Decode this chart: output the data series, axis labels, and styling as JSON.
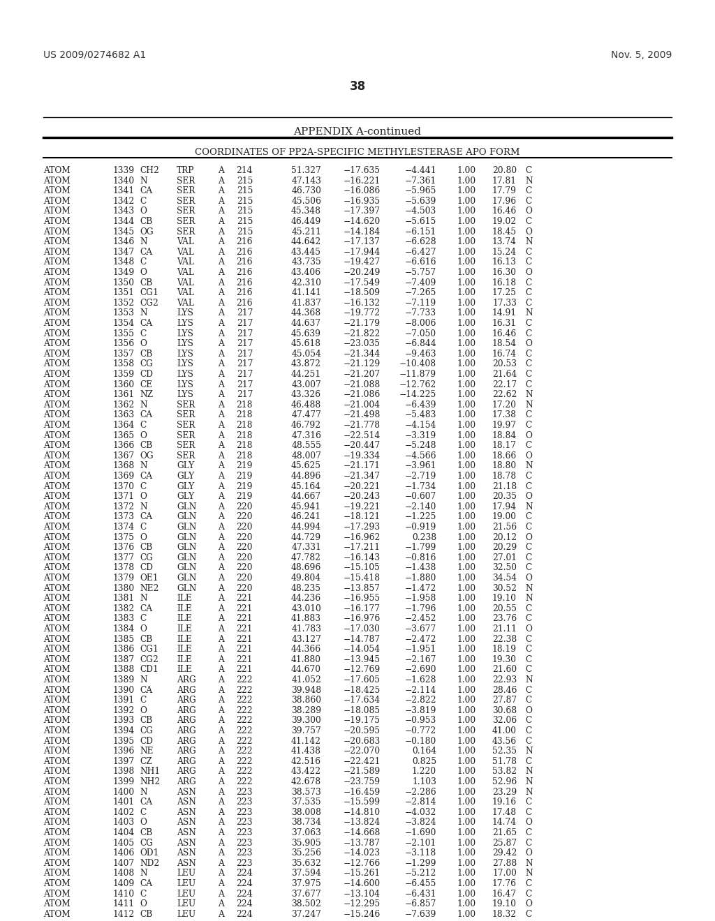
{
  "header_left": "US 2009/0274682 A1",
  "header_right": "Nov. 5, 2009",
  "page_number": "38",
  "appendix_title": "APPENDIX A-continued",
  "table_title": "COORDINATES OF PP2A-SPECIFIC METHYLESTERASE APO FORM",
  "rows": [
    [
      "ATOM",
      "1339",
      "CH2",
      "TRP",
      "A",
      "214",
      "51.327",
      "−17.635",
      "−4.441",
      "1.00",
      "20.80",
      "C"
    ],
    [
      "ATOM",
      "1340",
      "N",
      "SER",
      "A",
      "215",
      "47.143",
      "−16.221",
      "−7.361",
      "1.00",
      "17.81",
      "N"
    ],
    [
      "ATOM",
      "1341",
      "CA",
      "SER",
      "A",
      "215",
      "46.730",
      "−16.086",
      "−5.965",
      "1.00",
      "17.79",
      "C"
    ],
    [
      "ATOM",
      "1342",
      "C",
      "SER",
      "A",
      "215",
      "45.506",
      "−16.935",
      "−5.639",
      "1.00",
      "17.96",
      "C"
    ],
    [
      "ATOM",
      "1343",
      "O",
      "SER",
      "A",
      "215",
      "45.348",
      "−17.397",
      "−4.503",
      "1.00",
      "16.46",
      "O"
    ],
    [
      "ATOM",
      "1344",
      "CB",
      "SER",
      "A",
      "215",
      "46.449",
      "−14.620",
      "−5.615",
      "1.00",
      "19.02",
      "C"
    ],
    [
      "ATOM",
      "1345",
      "OG",
      "SER",
      "A",
      "215",
      "45.211",
      "−14.184",
      "−6.151",
      "1.00",
      "18.45",
      "O"
    ],
    [
      "ATOM",
      "1346",
      "N",
      "VAL",
      "A",
      "216",
      "44.642",
      "−17.137",
      "−6.628",
      "1.00",
      "13.74",
      "N"
    ],
    [
      "ATOM",
      "1347",
      "CA",
      "VAL",
      "A",
      "216",
      "43.445",
      "−17.944",
      "−6.427",
      "1.00",
      "15.24",
      "C"
    ],
    [
      "ATOM",
      "1348",
      "C",
      "VAL",
      "A",
      "216",
      "43.735",
      "−19.427",
      "−6.616",
      "1.00",
      "16.13",
      "C"
    ],
    [
      "ATOM",
      "1349",
      "O",
      "VAL",
      "A",
      "216",
      "43.406",
      "−20.249",
      "−5.757",
      "1.00",
      "16.30",
      "O"
    ],
    [
      "ATOM",
      "1350",
      "CB",
      "VAL",
      "A",
      "216",
      "42.310",
      "−17.549",
      "−7.409",
      "1.00",
      "16.18",
      "C"
    ],
    [
      "ATOM",
      "1351",
      "CG1",
      "VAL",
      "A",
      "216",
      "41.141",
      "−18.509",
      "−7.265",
      "1.00",
      "17.25",
      "C"
    ],
    [
      "ATOM",
      "1352",
      "CG2",
      "VAL",
      "A",
      "216",
      "41.837",
      "−16.132",
      "−7.119",
      "1.00",
      "17.33",
      "C"
    ],
    [
      "ATOM",
      "1353",
      "N",
      "LYS",
      "A",
      "217",
      "44.368",
      "−19.772",
      "−7.733",
      "1.00",
      "14.91",
      "N"
    ],
    [
      "ATOM",
      "1354",
      "CA",
      "LYS",
      "A",
      "217",
      "44.637",
      "−21.179",
      "−8.006",
      "1.00",
      "16.31",
      "C"
    ],
    [
      "ATOM",
      "1355",
      "C",
      "LYS",
      "A",
      "217",
      "45.639",
      "−21.822",
      "−7.050",
      "1.00",
      "16.46",
      "C"
    ],
    [
      "ATOM",
      "1356",
      "O",
      "LYS",
      "A",
      "217",
      "45.618",
      "−23.035",
      "−6.844",
      "1.00",
      "18.54",
      "O"
    ],
    [
      "ATOM",
      "1357",
      "CB",
      "LYS",
      "A",
      "217",
      "45.054",
      "−21.344",
      "−9.463",
      "1.00",
      "16.74",
      "C"
    ],
    [
      "ATOM",
      "1358",
      "CG",
      "LYS",
      "A",
      "217",
      "43.872",
      "−21.129",
      "−10.408",
      "1.00",
      "20.53",
      "C"
    ],
    [
      "ATOM",
      "1359",
      "CD",
      "LYS",
      "A",
      "217",
      "44.251",
      "−21.207",
      "−11.879",
      "1.00",
      "21.64",
      "C"
    ],
    [
      "ATOM",
      "1360",
      "CE",
      "LYS",
      "A",
      "217",
      "43.007",
      "−21.088",
      "−12.762",
      "1.00",
      "22.17",
      "C"
    ],
    [
      "ATOM",
      "1361",
      "NZ",
      "LYS",
      "A",
      "217",
      "43.326",
      "−21.086",
      "−14.225",
      "1.00",
      "22.62",
      "N"
    ],
    [
      "ATOM",
      "1362",
      "N",
      "SER",
      "A",
      "218",
      "46.488",
      "−21.004",
      "−6.439",
      "1.00",
      "17.20",
      "N"
    ],
    [
      "ATOM",
      "1363",
      "CA",
      "SER",
      "A",
      "218",
      "47.477",
      "−21.498",
      "−5.483",
      "1.00",
      "17.38",
      "C"
    ],
    [
      "ATOM",
      "1364",
      "C",
      "SER",
      "A",
      "218",
      "46.792",
      "−21.778",
      "−4.154",
      "1.00",
      "19.97",
      "C"
    ],
    [
      "ATOM",
      "1365",
      "O",
      "SER",
      "A",
      "218",
      "47.316",
      "−22.514",
      "−3.319",
      "1.00",
      "18.84",
      "O"
    ],
    [
      "ATOM",
      "1366",
      "CB",
      "SER",
      "A",
      "218",
      "48.555",
      "−20.447",
      "−5.248",
      "1.00",
      "18.17",
      "C"
    ],
    [
      "ATOM",
      "1367",
      "OG",
      "SER",
      "A",
      "218",
      "48.007",
      "−19.334",
      "−4.566",
      "1.00",
      "18.66",
      "O"
    ],
    [
      "ATOM",
      "1368",
      "N",
      "GLY",
      "A",
      "219",
      "45.625",
      "−21.171",
      "−3.961",
      "1.00",
      "18.80",
      "N"
    ],
    [
      "ATOM",
      "1369",
      "CA",
      "GLY",
      "A",
      "219",
      "44.896",
      "−21.347",
      "−2.719",
      "1.00",
      "18.78",
      "C"
    ],
    [
      "ATOM",
      "1370",
      "C",
      "GLY",
      "A",
      "219",
      "45.164",
      "−20.221",
      "−1.734",
      "1.00",
      "21.18",
      "C"
    ],
    [
      "ATOM",
      "1371",
      "O",
      "GLY",
      "A",
      "219",
      "44.667",
      "−20.243",
      "−0.607",
      "1.00",
      "20.35",
      "O"
    ],
    [
      "ATOM",
      "1372",
      "N",
      "GLN",
      "A",
      "220",
      "45.941",
      "−19.221",
      "−2.140",
      "1.00",
      "17.94",
      "N"
    ],
    [
      "ATOM",
      "1373",
      "CA",
      "GLN",
      "A",
      "220",
      "46.241",
      "−18.121",
      "−1.225",
      "1.00",
      "19.00",
      "C"
    ],
    [
      "ATOM",
      "1374",
      "C",
      "GLN",
      "A",
      "220",
      "44.994",
      "−17.293",
      "−0.919",
      "1.00",
      "21.56",
      "C"
    ],
    [
      "ATOM",
      "1375",
      "O",
      "GLN",
      "A",
      "220",
      "44.729",
      "−16.962",
      "0.238",
      "1.00",
      "20.12",
      "O"
    ],
    [
      "ATOM",
      "1376",
      "CB",
      "GLN",
      "A",
      "220",
      "47.331",
      "−17.211",
      "−1.799",
      "1.00",
      "20.29",
      "C"
    ],
    [
      "ATOM",
      "1377",
      "CG",
      "GLN",
      "A",
      "220",
      "47.782",
      "−16.143",
      "−0.816",
      "1.00",
      "27.01",
      "C"
    ],
    [
      "ATOM",
      "1378",
      "CD",
      "GLN",
      "A",
      "220",
      "48.696",
      "−15.105",
      "−1.438",
      "1.00",
      "32.50",
      "C"
    ],
    [
      "ATOM",
      "1379",
      "OE1",
      "GLN",
      "A",
      "220",
      "49.804",
      "−15.418",
      "−1.880",
      "1.00",
      "34.54",
      "O"
    ],
    [
      "ATOM",
      "1380",
      "NE2",
      "GLN",
      "A",
      "220",
      "48.235",
      "−13.857",
      "−1.472",
      "1.00",
      "30.52",
      "N"
    ],
    [
      "ATOM",
      "1381",
      "N",
      "ILE",
      "A",
      "221",
      "44.236",
      "−16.955",
      "−1.958",
      "1.00",
      "19.10",
      "N"
    ],
    [
      "ATOM",
      "1382",
      "CA",
      "ILE",
      "A",
      "221",
      "43.010",
      "−16.177",
      "−1.796",
      "1.00",
      "20.55",
      "C"
    ],
    [
      "ATOM",
      "1383",
      "C",
      "ILE",
      "A",
      "221",
      "41.883",
      "−16.976",
      "−2.452",
      "1.00",
      "23.76",
      "C"
    ],
    [
      "ATOM",
      "1384",
      "O",
      "ILE",
      "A",
      "221",
      "41.783",
      "−17.030",
      "−3.677",
      "1.00",
      "21.11",
      "O"
    ],
    [
      "ATOM",
      "1385",
      "CB",
      "ILE",
      "A",
      "221",
      "43.127",
      "−14.787",
      "−2.472",
      "1.00",
      "22.38",
      "C"
    ],
    [
      "ATOM",
      "1386",
      "CG1",
      "ILE",
      "A",
      "221",
      "44.366",
      "−14.054",
      "−1.951",
      "1.00",
      "18.19",
      "C"
    ],
    [
      "ATOM",
      "1387",
      "CG2",
      "ILE",
      "A",
      "221",
      "41.880",
      "−13.945",
      "−2.167",
      "1.00",
      "19.30",
      "C"
    ],
    [
      "ATOM",
      "1388",
      "CD1",
      "ILE",
      "A",
      "221",
      "44.670",
      "−12.769",
      "−2.690",
      "1.00",
      "21.60",
      "C"
    ],
    [
      "ATOM",
      "1389",
      "N",
      "ARG",
      "A",
      "222",
      "41.052",
      "−17.605",
      "−1.628",
      "1.00",
      "22.93",
      "N"
    ],
    [
      "ATOM",
      "1390",
      "CA",
      "ARG",
      "A",
      "222",
      "39.948",
      "−18.425",
      "−2.114",
      "1.00",
      "28.46",
      "C"
    ],
    [
      "ATOM",
      "1391",
      "C",
      "ARG",
      "A",
      "222",
      "38.860",
      "−17.634",
      "−2.822",
      "1.00",
      "27.87",
      "C"
    ],
    [
      "ATOM",
      "1392",
      "O",
      "ARG",
      "A",
      "222",
      "38.289",
      "−18.085",
      "−3.819",
      "1.00",
      "30.68",
      "O"
    ],
    [
      "ATOM",
      "1393",
      "CB",
      "ARG",
      "A",
      "222",
      "39.300",
      "−19.175",
      "−0.953",
      "1.00",
      "32.06",
      "C"
    ],
    [
      "ATOM",
      "1394",
      "CG",
      "ARG",
      "A",
      "222",
      "39.757",
      "−20.595",
      "−0.772",
      "1.00",
      "41.00",
      "C"
    ],
    [
      "ATOM",
      "1395",
      "CD",
      "ARG",
      "A",
      "222",
      "41.142",
      "−20.683",
      "−0.180",
      "1.00",
      "43.56",
      "C"
    ],
    [
      "ATOM",
      "1396",
      "NE",
      "ARG",
      "A",
      "222",
      "41.438",
      "−22.070",
      "0.164",
      "1.00",
      "52.35",
      "N"
    ],
    [
      "ATOM",
      "1397",
      "CZ",
      "ARG",
      "A",
      "222",
      "42.516",
      "−22.421",
      "0.825",
      "1.00",
      "51.78",
      "C"
    ],
    [
      "ATOM",
      "1398",
      "NH1",
      "ARG",
      "A",
      "222",
      "43.422",
      "−21.589",
      "1.220",
      "1.00",
      "53.82",
      "N"
    ],
    [
      "ATOM",
      "1399",
      "NH2",
      "ARG",
      "A",
      "222",
      "42.678",
      "−23.759",
      "1.103",
      "1.00",
      "52.96",
      "N"
    ],
    [
      "ATOM",
      "1400",
      "N",
      "ASN",
      "A",
      "223",
      "38.573",
      "−16.459",
      "−2.286",
      "1.00",
      "23.29",
      "N"
    ],
    [
      "ATOM",
      "1401",
      "CA",
      "ASN",
      "A",
      "223",
      "37.535",
      "−15.599",
      "−2.814",
      "1.00",
      "19.16",
      "C"
    ],
    [
      "ATOM",
      "1402",
      "C",
      "ASN",
      "A",
      "223",
      "38.008",
      "−14.810",
      "−4.032",
      "1.00",
      "17.48",
      "C"
    ],
    [
      "ATOM",
      "1403",
      "O",
      "ASN",
      "A",
      "223",
      "38.734",
      "−13.824",
      "−3.824",
      "1.00",
      "14.74",
      "O"
    ],
    [
      "ATOM",
      "1404",
      "CB",
      "ASN",
      "A",
      "223",
      "37.063",
      "−14.668",
      "−1.690",
      "1.00",
      "21.65",
      "C"
    ],
    [
      "ATOM",
      "1405",
      "CG",
      "ASN",
      "A",
      "223",
      "35.905",
      "−13.787",
      "−2.101",
      "1.00",
      "25.87",
      "C"
    ],
    [
      "ATOM",
      "1406",
      "OD1",
      "ASN",
      "A",
      "223",
      "35.256",
      "−14.023",
      "−3.118",
      "1.00",
      "29.42",
      "O"
    ],
    [
      "ATOM",
      "1407",
      "ND2",
      "ASN",
      "A",
      "223",
      "35.632",
      "−12.766",
      "−1.299",
      "1.00",
      "27.88",
      "N"
    ],
    [
      "ATOM",
      "1408",
      "N",
      "LEU",
      "A",
      "224",
      "37.594",
      "−15.261",
      "−5.212",
      "1.00",
      "17.00",
      "N"
    ],
    [
      "ATOM",
      "1409",
      "CA",
      "LEU",
      "A",
      "224",
      "37.975",
      "−14.600",
      "−6.455",
      "1.00",
      "17.76",
      "C"
    ],
    [
      "ATOM",
      "1410",
      "C",
      "LEU",
      "A",
      "224",
      "37.677",
      "−13.104",
      "−6.431",
      "1.00",
      "16.47",
      "C"
    ],
    [
      "ATOM",
      "1411",
      "O",
      "LEU",
      "A",
      "224",
      "38.502",
      "−12.295",
      "−6.857",
      "1.00",
      "19.10",
      "O"
    ],
    [
      "ATOM",
      "1412",
      "CB",
      "LEU",
      "A",
      "224",
      "37.247",
      "−15.246",
      "−7.639",
      "1.00",
      "18.32",
      "C"
    ]
  ]
}
